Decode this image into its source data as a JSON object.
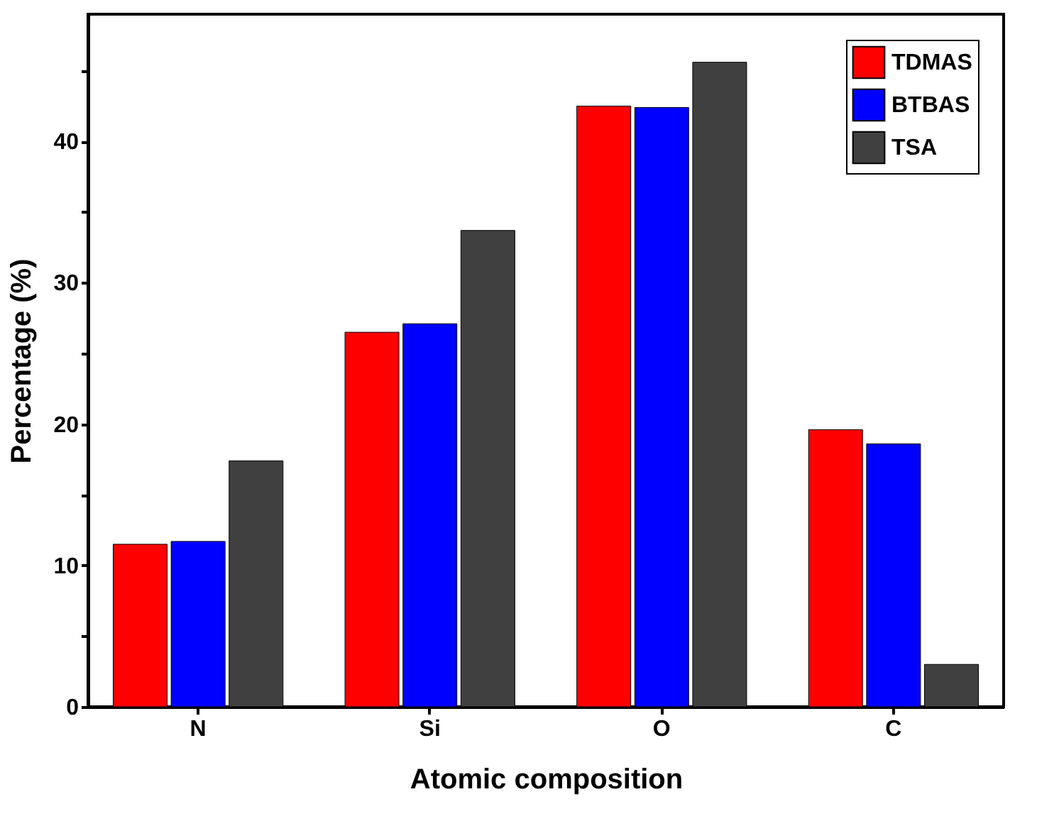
{
  "chart_data": {
    "type": "bar",
    "xlabel": "Atomic composition",
    "ylabel": "Percentage (%)",
    "categories": [
      "N",
      "Si",
      "O",
      "C"
    ],
    "series": [
      {
        "name": "TDMAS",
        "color": "#ff0000",
        "values": [
          11.5,
          26.5,
          42.5,
          19.6
        ]
      },
      {
        "name": "BTBAS",
        "color": "#0000ff",
        "values": [
          11.7,
          27.1,
          42.4,
          18.6
        ]
      },
      {
        "name": "TSA",
        "color": "#404040",
        "values": [
          17.4,
          33.7,
          45.6,
          3.0
        ]
      }
    ],
    "ylim": [
      0,
      49
    ],
    "yticks": [
      0,
      {
        "value": 5,
        "label": null
      },
      10,
      {
        "value": 15,
        "label": null
      },
      20,
      {
        "value": 25,
        "label": null
      },
      30,
      {
        "value": 35,
        "label": null
      },
      40,
      {
        "value": 45,
        "label": null
      }
    ],
    "grid": false,
    "legend": "top right"
  }
}
